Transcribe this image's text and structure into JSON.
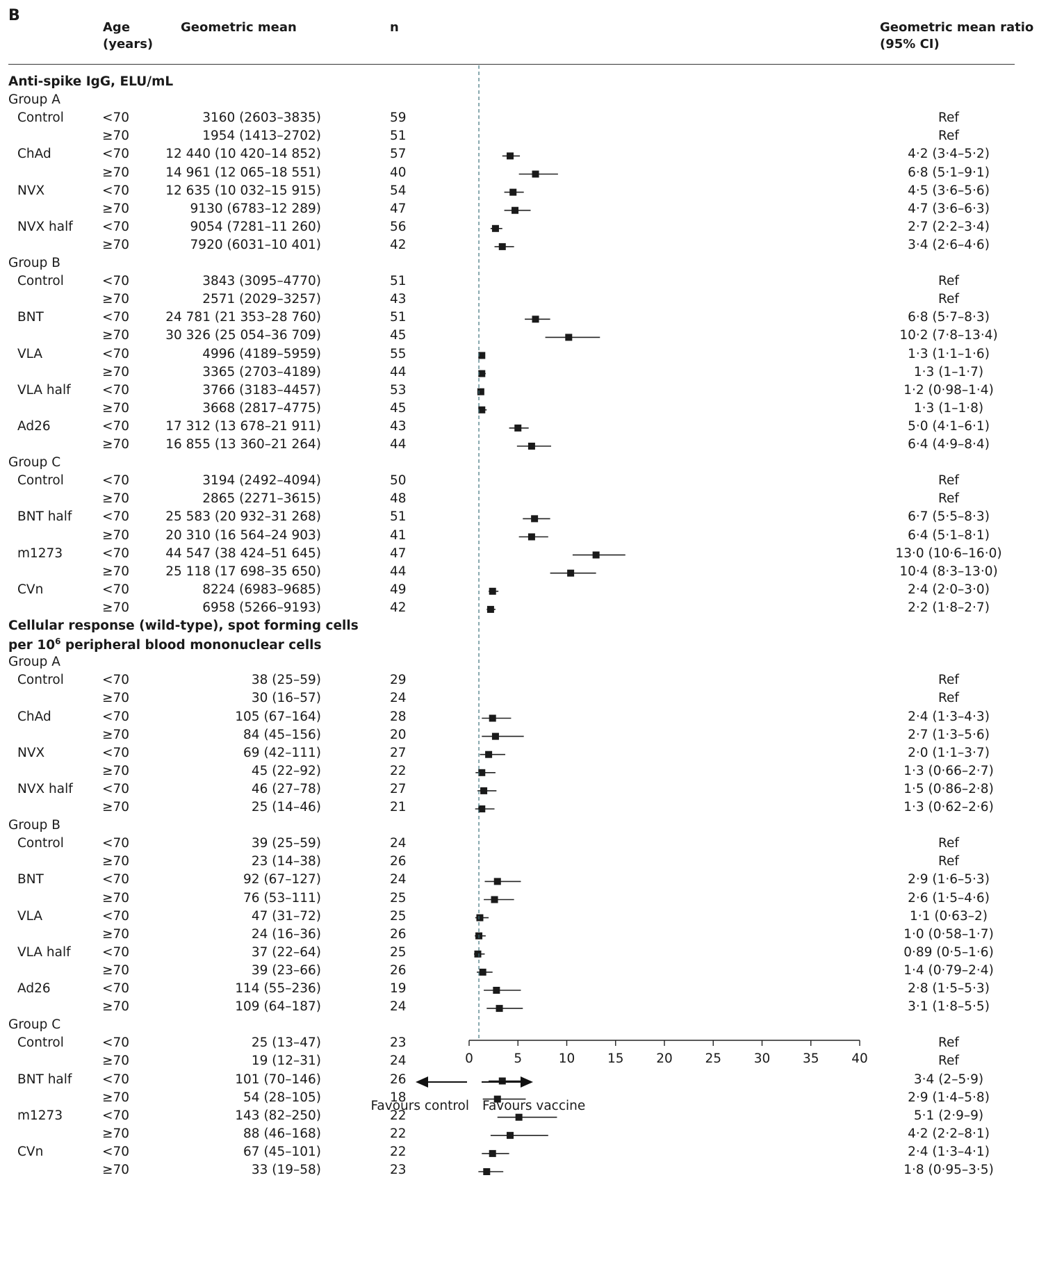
{
  "chart_data": {
    "type": "forest",
    "panel_label": "B",
    "columns": {
      "age": "Age\n(years)",
      "geomean": "Geometric mean",
      "n": "n",
      "ratio": "Geometric mean ratio\n(95% CI)"
    },
    "xaxis": {
      "ticks": [
        0,
        5,
        10,
        15,
        20,
        25,
        30,
        35,
        40
      ],
      "xlim": [
        0,
        40
      ],
      "reference_line": 1,
      "left_label": "Favours control",
      "right_label": "Favours vaccine"
    },
    "sections": [
      {
        "title": "Anti-spike IgG, ELU/mL",
        "groups": [
          {
            "name": "Group A",
            "rows": [
              {
                "treatment": "Control",
                "age": "<70",
                "geomean": "3160 (2603–3835)",
                "n": "59",
                "ratio_text": "Ref",
                "gmr": null
              },
              {
                "treatment": "",
                "age": "≥70",
                "geomean": "1954 (1413–2702)",
                "n": "51",
                "ratio_text": "Ref",
                "gmr": null
              },
              {
                "treatment": "ChAd",
                "age": "<70",
                "geomean": "12 440 (10 420–14 852)",
                "n": "57",
                "ratio_text": "4·2 (3·4–5·2)",
                "gmr": 4.2,
                "lo": 3.4,
                "hi": 5.2
              },
              {
                "treatment": "",
                "age": "≥70",
                "geomean": "14 961 (12 065–18 551)",
                "n": "40",
                "ratio_text": "6·8 (5·1–9·1)",
                "gmr": 6.8,
                "lo": 5.1,
                "hi": 9.1
              },
              {
                "treatment": "NVX",
                "age": "<70",
                "geomean": "12 635 (10 032–15 915)",
                "n": "54",
                "ratio_text": "4·5 (3·6–5·6)",
                "gmr": 4.5,
                "lo": 3.6,
                "hi": 5.6
              },
              {
                "treatment": "",
                "age": "≥70",
                "geomean": "9130 (6783–12 289)",
                "n": "47",
                "ratio_text": "4·7 (3·6–6·3)",
                "gmr": 4.7,
                "lo": 3.6,
                "hi": 6.3
              },
              {
                "treatment": "NVX half",
                "age": "<70",
                "geomean": "9054 (7281–11 260)",
                "n": "56",
                "ratio_text": "2·7 (2·2–3·4)",
                "gmr": 2.7,
                "lo": 2.2,
                "hi": 3.4
              },
              {
                "treatment": "",
                "age": "≥70",
                "geomean": "7920 (6031–10 401)",
                "n": "42",
                "ratio_text": "3·4 (2·6–4·6)",
                "gmr": 3.4,
                "lo": 2.6,
                "hi": 4.6
              }
            ]
          },
          {
            "name": "Group B",
            "rows": [
              {
                "treatment": "Control",
                "age": "<70",
                "geomean": "3843 (3095–4770)",
                "n": "51",
                "ratio_text": "Ref",
                "gmr": null
              },
              {
                "treatment": "",
                "age": "≥70",
                "geomean": "2571 (2029–3257)",
                "n": "43",
                "ratio_text": "Ref",
                "gmr": null
              },
              {
                "treatment": "BNT",
                "age": "<70",
                "geomean": "24 781 (21 353–28 760)",
                "n": "51",
                "ratio_text": "6·8 (5·7–8·3)",
                "gmr": 6.8,
                "lo": 5.7,
                "hi": 8.3
              },
              {
                "treatment": "",
                "age": "≥70",
                "geomean": "30 326 (25 054–36 709)",
                "n": "45",
                "ratio_text": "10·2 (7·8–13·4)",
                "gmr": 10.2,
                "lo": 7.8,
                "hi": 13.4
              },
              {
                "treatment": "VLA",
                "age": "<70",
                "geomean": "4996 (4189–5959)",
                "n": "55",
                "ratio_text": "1·3 (1·1–1·6)",
                "gmr": 1.3,
                "lo": 1.1,
                "hi": 1.6
              },
              {
                "treatment": "",
                "age": "≥70",
                "geomean": "3365 (2703–4189)",
                "n": "44",
                "ratio_text": "1·3 (1–1·7)",
                "gmr": 1.3,
                "lo": 1.0,
                "hi": 1.7
              },
              {
                "treatment": "VLA half",
                "age": "<70",
                "geomean": "3766 (3183–4457)",
                "n": "53",
                "ratio_text": "1·2 (0·98–1·4)",
                "gmr": 1.2,
                "lo": 0.98,
                "hi": 1.4
              },
              {
                "treatment": "",
                "age": "≥70",
                "geomean": "3668 (2817–4775)",
                "n": "45",
                "ratio_text": "1·3 (1–1·8)",
                "gmr": 1.3,
                "lo": 1.0,
                "hi": 1.8
              },
              {
                "treatment": "Ad26",
                "age": "<70",
                "geomean": "17 312 (13 678–21 911)",
                "n": "43",
                "ratio_text": "5·0 (4·1–6·1)",
                "gmr": 5.0,
                "lo": 4.1,
                "hi": 6.1
              },
              {
                "treatment": "",
                "age": "≥70",
                "geomean": "16 855 (13 360–21 264)",
                "n": "44",
                "ratio_text": "6·4 (4·9–8·4)",
                "gmr": 6.4,
                "lo": 4.9,
                "hi": 8.4
              }
            ]
          },
          {
            "name": "Group C",
            "rows": [
              {
                "treatment": "Control",
                "age": "<70",
                "geomean": "3194 (2492–4094)",
                "n": "50",
                "ratio_text": "Ref",
                "gmr": null
              },
              {
                "treatment": "",
                "age": "≥70",
                "geomean": "2865 (2271–3615)",
                "n": "48",
                "ratio_text": "Ref",
                "gmr": null
              },
              {
                "treatment": "BNT half",
                "age": "<70",
                "geomean": "25 583 (20 932–31 268)",
                "n": "51",
                "ratio_text": "6·7 (5·5–8·3)",
                "gmr": 6.7,
                "lo": 5.5,
                "hi": 8.3
              },
              {
                "treatment": "",
                "age": "≥70",
                "geomean": "20 310 (16 564–24 903)",
                "n": "41",
                "ratio_text": "6·4 (5·1–8·1)",
                "gmr": 6.4,
                "lo": 5.1,
                "hi": 8.1
              },
              {
                "treatment": "m1273",
                "age": "<70",
                "geomean": "44 547 (38 424–51 645)",
                "n": "47",
                "ratio_text": "13·0 (10·6–16·0)",
                "gmr": 13.0,
                "lo": 10.6,
                "hi": 16.0
              },
              {
                "treatment": "",
                "age": "≥70",
                "geomean": "25 118 (17 698–35 650)",
                "n": "44",
                "ratio_text": "10·4 (8·3–13·0)",
                "gmr": 10.4,
                "lo": 8.3,
                "hi": 13.0
              },
              {
                "treatment": "CVn",
                "age": "<70",
                "geomean": "8224 (6983–9685)",
                "n": "49",
                "ratio_text": "2·4 (2·0–3·0)",
                "gmr": 2.4,
                "lo": 2.0,
                "hi": 3.0
              },
              {
                "treatment": "",
                "age": "≥70",
                "geomean": "6958 (5266–9193)",
                "n": "42",
                "ratio_text": "2·2 (1·8–2·7)",
                "gmr": 2.2,
                "lo": 1.8,
                "hi": 2.7
              }
            ]
          }
        ]
      },
      {
        "title": "Cellular response (wild-type), spot forming cells",
        "title_line2_prefix": "per 10",
        "title_line2_sup": "6",
        "title_line2_suffix": " peripheral blood mononuclear cells",
        "groups": [
          {
            "name": "Group A",
            "rows": [
              {
                "treatment": "Control",
                "age": "<70",
                "geomean": "38 (25–59)",
                "n": "29",
                "ratio_text": "Ref",
                "gmr": null
              },
              {
                "treatment": "",
                "age": "≥70",
                "geomean": "30 (16–57)",
                "n": "24",
                "ratio_text": "Ref",
                "gmr": null
              },
              {
                "treatment": "ChAd",
                "age": "<70",
                "geomean": "105 (67–164)",
                "n": "28",
                "ratio_text": "2·4 (1·3–4·3)",
                "gmr": 2.4,
                "lo": 1.3,
                "hi": 4.3
              },
              {
                "treatment": "",
                "age": "≥70",
                "geomean": "84 (45–156)",
                "n": "20",
                "ratio_text": "2·7 (1·3–5·6)",
                "gmr": 2.7,
                "lo": 1.3,
                "hi": 5.6
              },
              {
                "treatment": "NVX",
                "age": "<70",
                "geomean": "69 (42–111)",
                "n": "27",
                "ratio_text": "2·0 (1·1–3·7)",
                "gmr": 2.0,
                "lo": 1.1,
                "hi": 3.7
              },
              {
                "treatment": "",
                "age": "≥70",
                "geomean": "45 (22–92)",
                "n": "22",
                "ratio_text": "1·3 (0·66–2·7)",
                "gmr": 1.3,
                "lo": 0.66,
                "hi": 2.7
              },
              {
                "treatment": "NVX half",
                "age": "<70",
                "geomean": "46 (27–78)",
                "n": "27",
                "ratio_text": "1·5 (0·86–2·8)",
                "gmr": 1.5,
                "lo": 0.86,
                "hi": 2.8
              },
              {
                "treatment": "",
                "age": "≥70",
                "geomean": "25 (14–46)",
                "n": "21",
                "ratio_text": "1·3 (0·62–2·6)",
                "gmr": 1.3,
                "lo": 0.62,
                "hi": 2.6
              }
            ]
          },
          {
            "name": "Group B",
            "rows": [
              {
                "treatment": "Control",
                "age": "<70",
                "geomean": "39 (25–59)",
                "n": "24",
                "ratio_text": "Ref",
                "gmr": null
              },
              {
                "treatment": "",
                "age": "≥70",
                "geomean": "23 (14–38)",
                "n": "26",
                "ratio_text": "Ref",
                "gmr": null
              },
              {
                "treatment": "BNT",
                "age": "<70",
                "geomean": "92 (67–127)",
                "n": "24",
                "ratio_text": "2·9 (1·6–5·3)",
                "gmr": 2.9,
                "lo": 1.6,
                "hi": 5.3
              },
              {
                "treatment": "",
                "age": "≥70",
                "geomean": "76 (53–111)",
                "n": "25",
                "ratio_text": "2·6 (1·5–4·6)",
                "gmr": 2.6,
                "lo": 1.5,
                "hi": 4.6
              },
              {
                "treatment": "VLA",
                "age": "<70",
                "geomean": "47 (31–72)",
                "n": "25",
                "ratio_text": "1·1 (0·63–2)",
                "gmr": 1.1,
                "lo": 0.63,
                "hi": 2.0
              },
              {
                "treatment": "",
                "age": "≥70",
                "geomean": "24 (16–36)",
                "n": "26",
                "ratio_text": "1·0 (0·58–1·7)",
                "gmr": 1.0,
                "lo": 0.58,
                "hi": 1.7
              },
              {
                "treatment": "VLA half",
                "age": "<70",
                "geomean": "37 (22–64)",
                "n": "25",
                "ratio_text": "0·89 (0·5–1·6)",
                "gmr": 0.89,
                "lo": 0.5,
                "hi": 1.6
              },
              {
                "treatment": "",
                "age": "≥70",
                "geomean": "39 (23–66)",
                "n": "26",
                "ratio_text": "1·4 (0·79–2·4)",
                "gmr": 1.4,
                "lo": 0.79,
                "hi": 2.4
              },
              {
                "treatment": "Ad26",
                "age": "<70",
                "geomean": "114 (55–236)",
                "n": "19",
                "ratio_text": "2·8 (1·5–5·3)",
                "gmr": 2.8,
                "lo": 1.5,
                "hi": 5.3
              },
              {
                "treatment": "",
                "age": "≥70",
                "geomean": "109 (64–187)",
                "n": "24",
                "ratio_text": "3·1 (1·8–5·5)",
                "gmr": 3.1,
                "lo": 1.8,
                "hi": 5.5
              }
            ]
          },
          {
            "name": "Group C",
            "rows": [
              {
                "treatment": "Control",
                "age": "<70",
                "geomean": "25 (13–47)",
                "n": "23",
                "ratio_text": "Ref",
                "gmr": null
              },
              {
                "treatment": "",
                "age": "≥70",
                "geomean": "19 (12–31)",
                "n": "24",
                "ratio_text": "Ref",
                "gmr": null
              },
              {
                "treatment": "BNT half",
                "age": "<70",
                "geomean": "101 (70–146)",
                "n": "26",
                "ratio_text": "3·4 (2–5·9)",
                "gmr": 3.4,
                "lo": 2.0,
                "hi": 5.9
              },
              {
                "treatment": "",
                "age": "≥70",
                "geomean": "54 (28–105)",
                "n": "18",
                "ratio_text": "2·9 (1·4–5·8)",
                "gmr": 2.9,
                "lo": 1.4,
                "hi": 5.8
              },
              {
                "treatment": "m1273",
                "age": "<70",
                "geomean": "143 (82–250)",
                "n": "22",
                "ratio_text": "5·1 (2·9–9)",
                "gmr": 5.1,
                "lo": 2.9,
                "hi": 9.0
              },
              {
                "treatment": "",
                "age": "≥70",
                "geomean": "88 (46–168)",
                "n": "22",
                "ratio_text": "4·2 (2·2–8·1)",
                "gmr": 4.2,
                "lo": 2.2,
                "hi": 8.1
              },
              {
                "treatment": "CVn",
                "age": "<70",
                "geomean": "67 (45–101)",
                "n": "22",
                "ratio_text": "2·4 (1·3–4·1)",
                "gmr": 2.4,
                "lo": 1.3,
                "hi": 4.1
              },
              {
                "treatment": "",
                "age": "≥70",
                "geomean": "33 (19–58)",
                "n": "23",
                "ratio_text": "1·8 (0·95–3·5)",
                "gmr": 1.8,
                "lo": 0.95,
                "hi": 3.5
              }
            ]
          }
        ]
      }
    ]
  }
}
